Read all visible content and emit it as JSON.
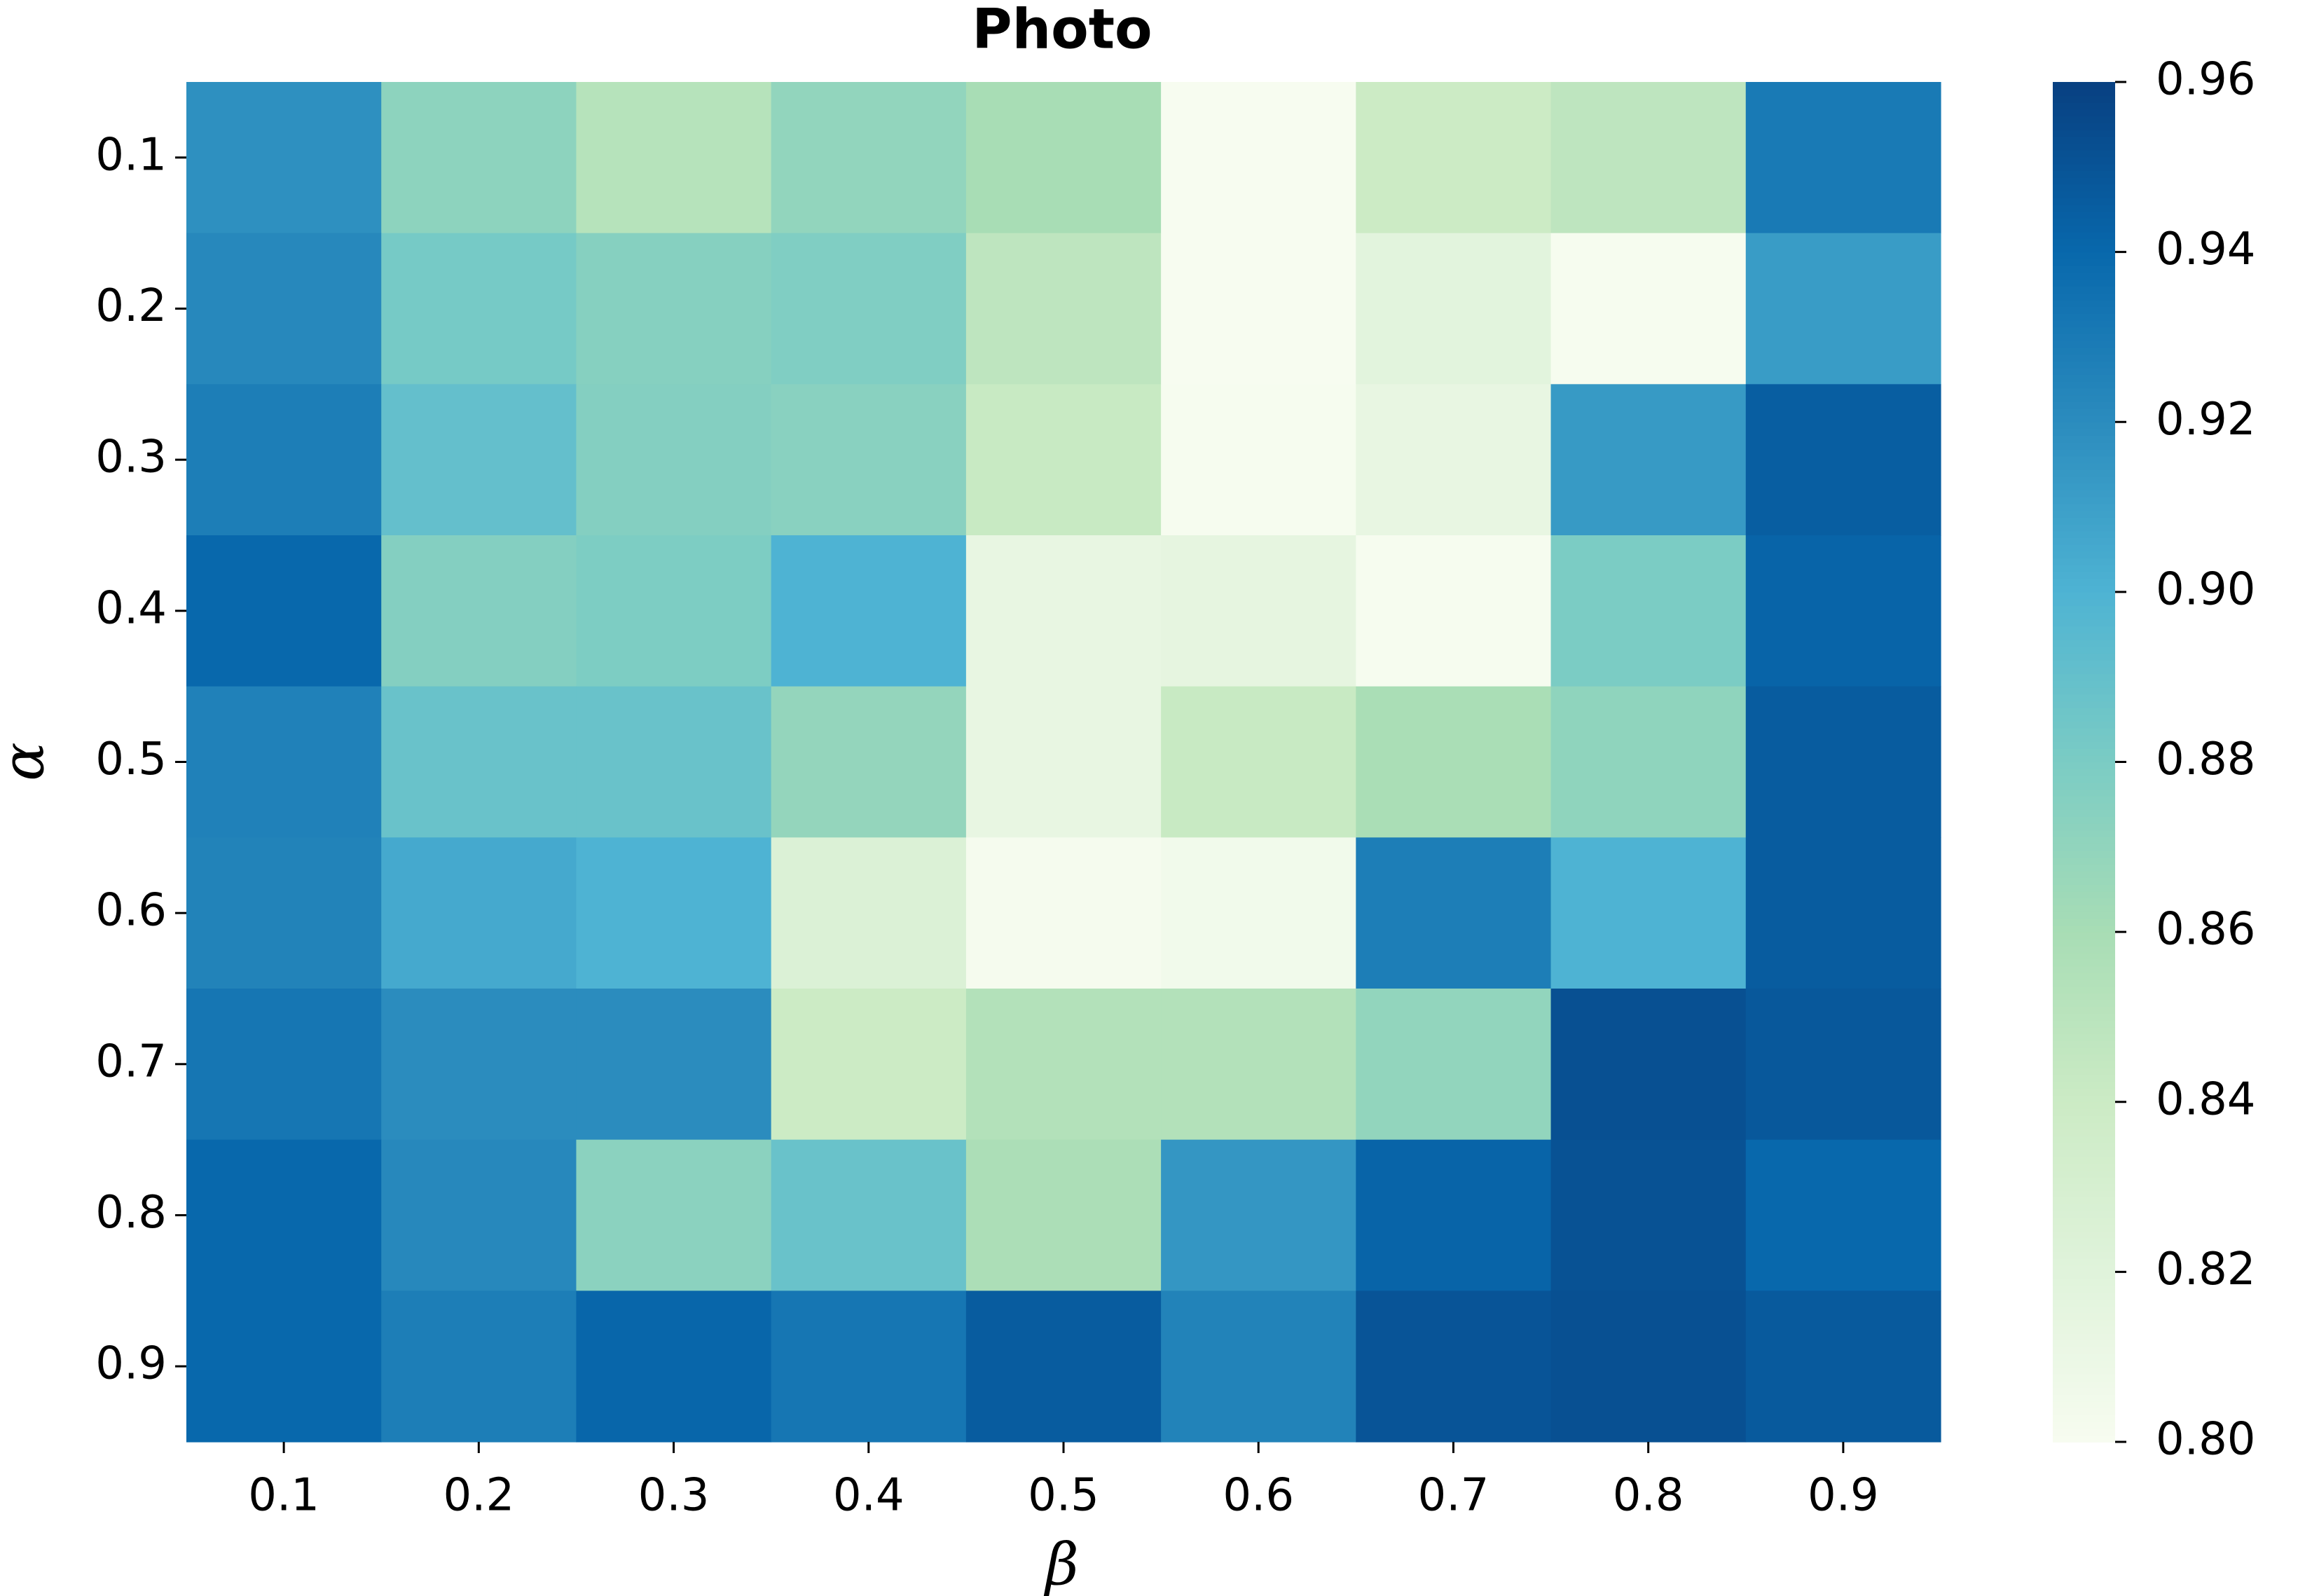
{
  "chart_data": {
    "type": "heatmap",
    "title": "Photo",
    "xlabel": "β",
    "ylabel": "α",
    "x_categories": [
      "0.1",
      "0.2",
      "0.3",
      "0.4",
      "0.5",
      "0.6",
      "0.7",
      "0.8",
      "0.9"
    ],
    "y_categories": [
      "0.1",
      "0.2",
      "0.3",
      "0.4",
      "0.5",
      "0.6",
      "0.7",
      "0.8",
      "0.9"
    ],
    "values": [
      [
        0.918,
        0.872,
        0.852,
        0.87,
        0.86,
        0.8,
        0.84,
        0.848,
        0.93
      ],
      [
        0.922,
        0.882,
        0.875,
        0.878,
        0.848,
        0.8,
        0.818,
        0.801,
        0.912
      ],
      [
        0.928,
        0.89,
        0.876,
        0.874,
        0.842,
        0.801,
        0.813,
        0.913,
        0.945
      ],
      [
        0.94,
        0.876,
        0.879,
        0.9,
        0.813,
        0.815,
        0.801,
        0.88,
        0.942
      ],
      [
        0.926,
        0.888,
        0.888,
        0.869,
        0.813,
        0.842,
        0.859,
        0.871,
        0.946
      ],
      [
        0.925,
        0.905,
        0.9,
        0.825,
        0.802,
        0.805,
        0.928,
        0.9,
        0.946
      ],
      [
        0.932,
        0.92,
        0.92,
        0.84,
        0.854,
        0.854,
        0.87,
        0.952,
        0.948
      ],
      [
        0.94,
        0.922,
        0.873,
        0.888,
        0.858,
        0.915,
        0.942,
        0.951,
        0.94
      ],
      [
        0.94,
        0.928,
        0.941,
        0.932,
        0.946,
        0.925,
        0.95,
        0.952,
        0.947
      ]
    ],
    "colormap": "GnBu",
    "clim": [
      0.8,
      0.96
    ],
    "cticks": [
      {
        "value": 0.8,
        "label": "0.80"
      },
      0.82,
      0.84,
      0.86,
      0.88,
      {
        "value": 0.9,
        "label": "0.90"
      },
      0.92,
      0.94,
      0.96
    ]
  }
}
